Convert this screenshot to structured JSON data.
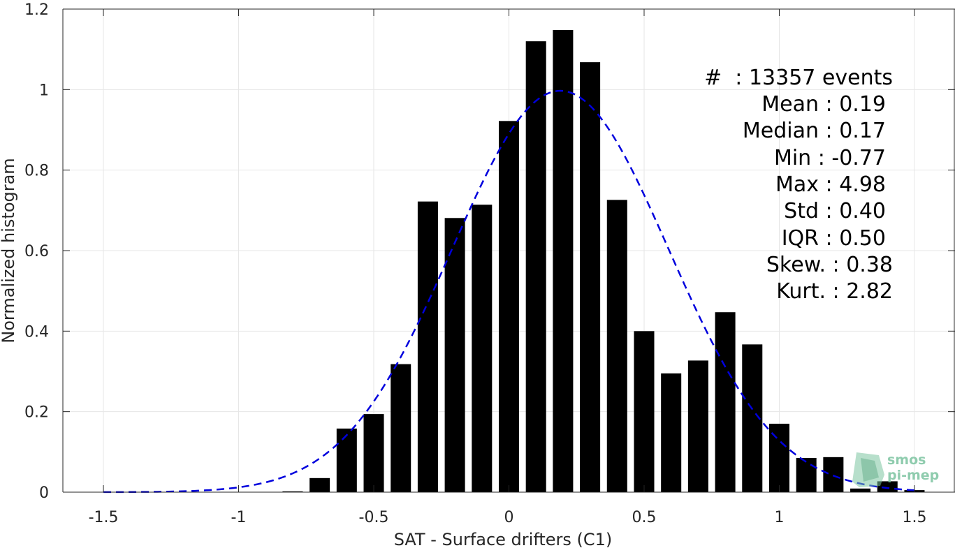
{
  "chart_data": {
    "type": "bar",
    "xlabel": "SAT - Surface drifters (C1)",
    "ylabel": "Normalized histogram",
    "xlim": [
      -1.65,
      1.65
    ],
    "ylim": [
      0,
      1.2
    ],
    "xticks": [
      "-1.5",
      "-1",
      "-0.5",
      "0",
      "0.5",
      "1",
      "1.5"
    ],
    "xtick_values": [
      -1.5,
      -1,
      -0.5,
      0,
      0.5,
      1,
      1.5
    ],
    "yticks": [
      "0",
      "0.2",
      "0.4",
      "0.6",
      "0.8",
      "1",
      "1.2"
    ],
    "ytick_values": [
      0,
      0.2,
      0.4,
      0.6,
      0.8,
      1.0,
      1.2
    ],
    "grid": true,
    "bar_width": 0.075,
    "bar_color": "#000000",
    "x": [
      -0.8,
      -0.7,
      -0.6,
      -0.5,
      -0.4,
      -0.3,
      -0.2,
      -0.1,
      0.0,
      0.1,
      0.2,
      0.3,
      0.4,
      0.5,
      0.6,
      0.7,
      0.8,
      0.9,
      1.0,
      1.1,
      1.2,
      1.3,
      1.4,
      1.5
    ],
    "values": [
      0.002,
      0.035,
      0.158,
      0.194,
      0.318,
      0.722,
      0.681,
      0.714,
      0.922,
      1.12,
      1.148,
      1.068,
      0.726,
      0.4,
      0.295,
      0.327,
      0.447,
      0.367,
      0.17,
      0.085,
      0.087,
      0.009,
      0.027,
      0.005
    ],
    "fit_curve": {
      "style": "dashed",
      "color": "#0000dd",
      "mean": 0.19,
      "std": 0.4,
      "peak": 0.997,
      "x_range": [
        -1.5,
        1.5
      ]
    },
    "stats": [
      {
        "line": "#  : 13357 events"
      },
      {
        "line": "Mean : 0.19"
      },
      {
        "line": "Median : 0.17"
      },
      {
        "line": "Min : -0.77"
      },
      {
        "line": "Max : 4.98"
      },
      {
        "line": "Std : 0.40"
      },
      {
        "line": "IQR : 0.50"
      },
      {
        "line": "Skew. : 0.38"
      },
      {
        "line": "Kurt. : 2.82"
      }
    ]
  },
  "logo": {
    "line1": "smos",
    "line2": "pi-mep",
    "color": "#7cc4a0"
  }
}
